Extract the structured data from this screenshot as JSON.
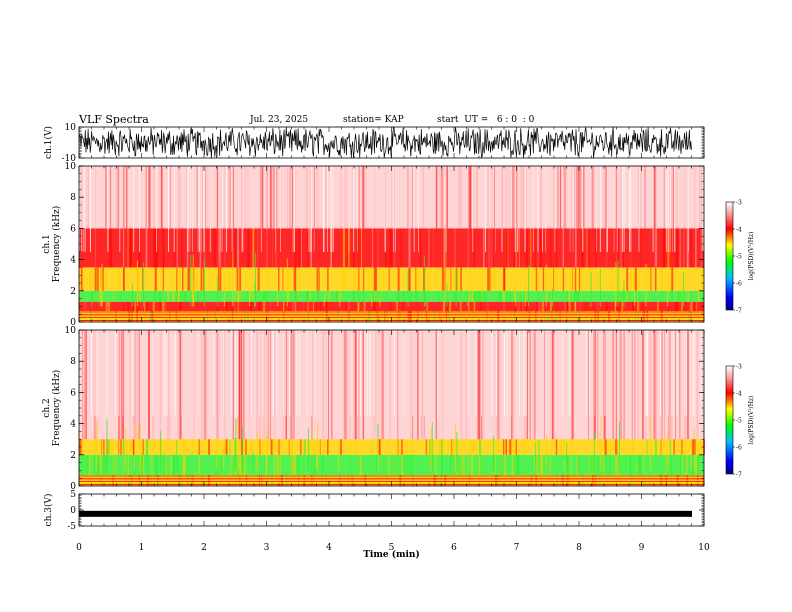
{
  "header": {
    "title": "VLF Spectra",
    "date": "Jul. 23, 2025",
    "station": "station= KAP",
    "start": "start  UT =   6 : 0  : 0"
  },
  "chart_data": [
    {
      "type": "line",
      "panel": "ch1-waveform",
      "ylabel": "ch.1(V)",
      "ylim": [
        -10,
        10
      ],
      "yticks": [
        "10",
        "-10"
      ],
      "xlim": [
        0,
        10
      ],
      "trace_color": "#000000"
    },
    {
      "type": "heatmap",
      "panel": "ch1-spectrogram",
      "ylabel": "ch.1 Frequency (kHz)",
      "ylim": [
        0,
        10
      ],
      "yticks": [
        "0",
        "2",
        "4",
        "6",
        "8",
        "10"
      ],
      "xlim": [
        0,
        10
      ],
      "colorbar": {
        "label": "log(PSD)(V²/Hz)",
        "ticks": [
          "-3",
          "-4",
          "-5",
          "-6",
          "-7"
        ],
        "range": [
          -7,
          -3
        ]
      },
      "bands_kHz": [
        {
          "f": [
            0.0,
            0.7
          ],
          "level": "mixed"
        },
        {
          "f": [
            0.7,
            1.3
          ],
          "level": -4.0
        },
        {
          "f": [
            1.3,
            2.0
          ],
          "level": -5.0
        },
        {
          "f": [
            2.0,
            3.5
          ],
          "level": -4.2
        },
        {
          "f": [
            3.5,
            6.0
          ],
          "level": -3.7
        },
        {
          "f": [
            6.0,
            10.0
          ],
          "level": -3.2
        }
      ]
    },
    {
      "type": "heatmap",
      "panel": "ch2-spectrogram",
      "ylabel": "ch.2 Frequency (kHz)",
      "ylim": [
        0,
        10
      ],
      "yticks": [
        "0",
        "2",
        "4",
        "6",
        "8",
        "10"
      ],
      "xlim": [
        0,
        10
      ],
      "colorbar": {
        "label": "log(PSD)(V²/Hz)",
        "ticks": [
          "-3",
          "-4",
          "-5",
          "-6",
          "-7"
        ],
        "range": [
          -7,
          -3
        ]
      },
      "bands_kHz": [
        {
          "f": [
            0.0,
            0.7
          ],
          "level": "mixed"
        },
        {
          "f": [
            0.7,
            2.0
          ],
          "level": -4.8
        },
        {
          "f": [
            2.0,
            3.0
          ],
          "level": -4.3
        },
        {
          "f": [
            3.0,
            10.0
          ],
          "level": -3.2
        }
      ]
    },
    {
      "type": "line",
      "panel": "ch3-waveform",
      "ylabel": "ch.3(V)",
      "ylim": [
        -5,
        5
      ],
      "yticks": [
        "5",
        "0",
        "-5"
      ],
      "xlim": [
        0,
        10
      ],
      "trace_level": -1.2,
      "trace_color": "#000000"
    }
  ],
  "xaxis": {
    "label": "Time (min)",
    "ticks": [
      "0",
      "1",
      "2",
      "3",
      "4",
      "5",
      "6",
      "7",
      "8",
      "9",
      "10"
    ],
    "range": [
      0,
      10
    ]
  },
  "colors": {
    "red": "#ff0000",
    "yellow": "#ffd000",
    "green": "#33ee33",
    "white": "#ffffff",
    "axis": "#000000"
  }
}
